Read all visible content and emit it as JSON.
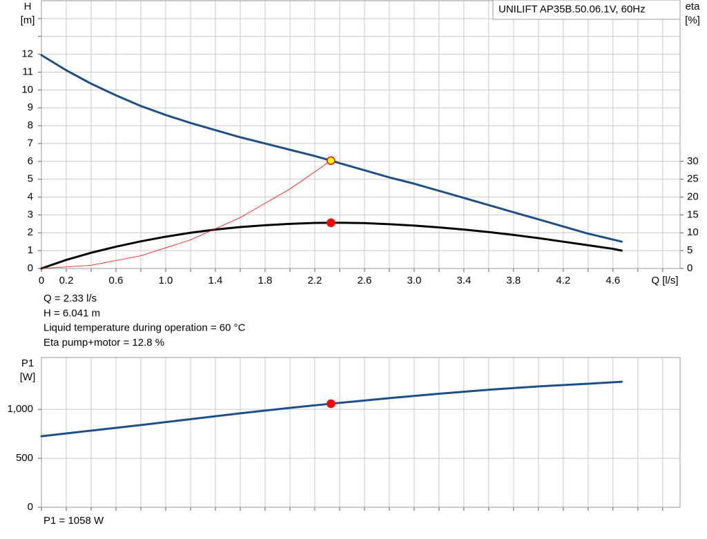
{
  "chart_data": [
    {
      "type": "line",
      "title": "UNILIFT AP35B.50.06.1V, 60Hz",
      "ylabel": "H",
      "yunit": "[m]",
      "y2label": "eta",
      "y2unit": "[%]",
      "xlabel": "Q [l/s]",
      "xlim": [
        0,
        5.14
      ],
      "xticks": [
        0,
        0.2,
        0.6,
        {
          "value": 1,
          "label": "1.0"
        },
        1.4,
        1.8,
        2.2,
        2.6,
        {
          "value": 3,
          "label": "3.0"
        },
        3.4,
        3.8,
        4.2,
        4.6
      ],
      "xminor": [
        0.4,
        0.8,
        1.2,
        1.6,
        2,
        2.4,
        2.8,
        3.2,
        3.6,
        4,
        4.4,
        4.8,
        5
      ],
      "ylim": [
        0,
        15
      ],
      "yticks": [
        0,
        1,
        2,
        3,
        4,
        5,
        6,
        7,
        8,
        9,
        10,
        11,
        12
      ],
      "yminor": [
        13,
        14
      ],
      "y2lim": [
        0,
        75
      ],
      "y2ticks": [
        0,
        5,
        10,
        15,
        20,
        25,
        30
      ],
      "grid": true,
      "series": [
        {
          "color": "#1d4f86",
          "linewidth": 3,
          "x": [
            0,
            0.2,
            0.4,
            0.6,
            0.8,
            1,
            1.2,
            1.4,
            1.6,
            1.8,
            2,
            2.2,
            2.33,
            2.4,
            2.6,
            2.8,
            3,
            3.2,
            3.4,
            3.6,
            3.8,
            4,
            4.2,
            4.4,
            4.6,
            4.67
          ],
          "values": [
            11.95,
            11.1,
            10.35,
            9.7,
            9.1,
            8.6,
            8.15,
            7.75,
            7.35,
            7.0,
            6.65,
            6.3,
            6.041,
            5.9,
            5.5,
            5.1,
            4.75,
            4.35,
            3.95,
            3.55,
            3.15,
            2.75,
            2.35,
            1.95,
            1.62,
            1.5
          ]
        },
        {
          "color": "#000000",
          "linewidth": 3,
          "axis": "y2",
          "x": [
            0,
            0.2,
            0.4,
            0.6,
            0.8,
            1,
            1.2,
            1.4,
            1.6,
            1.8,
            2,
            2.2,
            2.4,
            2.6,
            2.8,
            3,
            3.2,
            3.4,
            3.6,
            3.8,
            4,
            4.2,
            4.4,
            4.6,
            4.67
          ],
          "values": [
            0,
            2.4,
            4.4,
            6.1,
            7.6,
            8.9,
            10.0,
            10.9,
            11.6,
            12.1,
            12.5,
            12.75,
            12.8,
            12.7,
            12.4,
            12.0,
            11.5,
            10.9,
            10.2,
            9.4,
            8.5,
            7.5,
            6.5,
            5.5,
            5.0
          ]
        },
        {
          "color": "#ff0000",
          "linewidth": 0.8,
          "x": [
            0,
            0.4,
            0.8,
            1.2,
            1.6,
            2,
            2.33
          ],
          "values": [
            0,
            0.18,
            0.71,
            1.6,
            2.85,
            4.45,
            6.041
          ]
        }
      ],
      "points": [
        {
          "x": 2.33,
          "y": 6.041,
          "color": "#ffff00",
          "edgecolor": "#ff0000"
        },
        {
          "x": 2.33,
          "y": 12.8,
          "axis": "y2",
          "color": "#ff0000",
          "edgecolor": "#ff0000"
        }
      ],
      "annotations": [
        "Q = 2.33 l/s",
        "H = 6.041 m",
        "Liquid temperature during operation = 60 °C",
        "Eta pump+motor = 12.8 %"
      ]
    },
    {
      "type": "line",
      "ylabel": "P1",
      "yunit": "[W]",
      "xlim": [
        0,
        5.14
      ],
      "xminor": [
        0,
        0.2,
        0.4,
        0.6,
        0.8,
        1,
        1.2,
        1.4,
        1.6,
        1.8,
        2,
        2.2,
        2.4,
        2.6,
        2.8,
        3,
        3.2,
        3.4,
        3.6,
        3.8,
        4,
        4.2,
        4.4,
        4.6,
        4.8,
        5
      ],
      "ylim": [
        0,
        1530
      ],
      "yticks": [
        0,
        500,
        {
          "value": 1000,
          "label": "1,000"
        }
      ],
      "grid": true,
      "series": [
        {
          "color": "#1d4f86",
          "linewidth": 3,
          "x": [
            0,
            0.4,
            0.8,
            1.2,
            1.6,
            2,
            2.33,
            2.8,
            3.2,
            3.6,
            4,
            4.4,
            4.67
          ],
          "values": [
            725,
            783,
            840,
            900,
            960,
            1015,
            1058,
            1115,
            1160,
            1200,
            1235,
            1262,
            1282
          ]
        }
      ],
      "points": [
        {
          "x": 2.33,
          "y": 1058,
          "color": "#ff0000",
          "edgecolor": "#ff0000"
        }
      ],
      "annotations": [
        "P1 = 1058 W"
      ]
    }
  ]
}
